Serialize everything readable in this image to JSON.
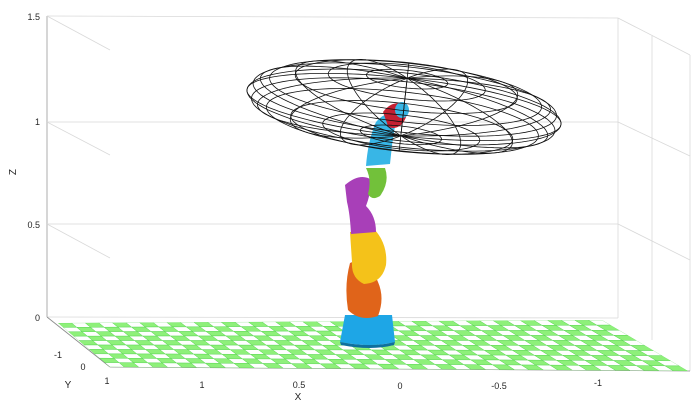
{
  "axes": {
    "x_label": "X",
    "y_label": "Y",
    "z_label": "Z",
    "z_ticks": [
      "0",
      "0.5",
      "1",
      "1.5"
    ],
    "x_ticks": [
      "1",
      "0.5",
      "0",
      "-0.5",
      "-1"
    ],
    "y_ticks": [
      "-1",
      "0",
      "1"
    ]
  },
  "floor": {
    "color_a": "#8ef07a",
    "color_b": "#ffffff",
    "grid_line_color": "#4fd24a"
  },
  "robot": {
    "segments": [
      {
        "name": "base",
        "color": "#1ea6e6"
      },
      {
        "name": "link-1",
        "color": "#e0641a"
      },
      {
        "name": "link-2",
        "color": "#f4c21a"
      },
      {
        "name": "link-3",
        "color": "#a83fb8"
      },
      {
        "name": "link-4",
        "color": "#72c13a"
      },
      {
        "name": "link-5",
        "color": "#38b6e6"
      },
      {
        "name": "end-effector",
        "color": "#c42032"
      }
    ]
  },
  "ellipsoid": {
    "stroke": "#111111"
  }
}
